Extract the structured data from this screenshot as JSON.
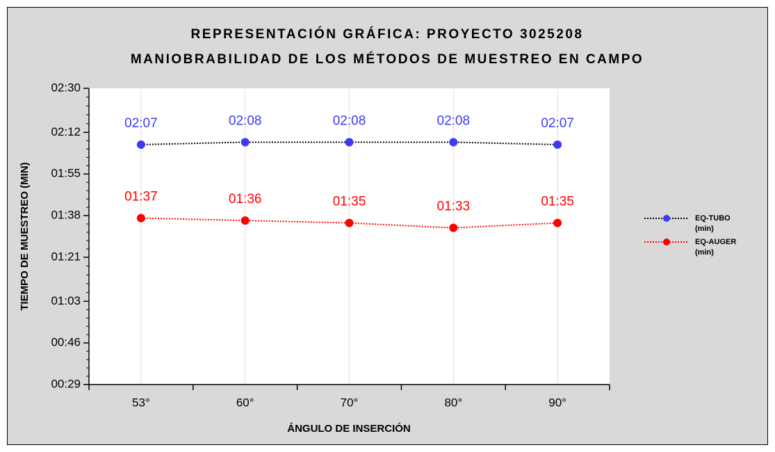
{
  "chart_data": {
    "type": "line",
    "title": [
      "REPRESENTACIÓN GRÁFICA: PROYECTO 3025208",
      "MANIOBRABILIDAD DE LOS MÉTODOS DE MUESTREO EN CAMPO"
    ],
    "x_label": "ÁNGULO DE INSERCIÓN",
    "y_label": "TIEMPO DE MUESTREO (MIN)",
    "categories": [
      "53°",
      "60°",
      "70°",
      "80°",
      "90°"
    ],
    "series": [
      {
        "name": "EQ-TUBO (min)",
        "color": "#3b3bf5",
        "line_color": "#000000",
        "values": [
          127,
          128,
          128,
          128,
          127
        ],
        "value_labels": [
          "02:07",
          "02:08",
          "02:08",
          "02:08",
          "02:07"
        ]
      },
      {
        "name": "EQ-AUGER (min)",
        "color": "#ff0000",
        "line_color": "#ff0000",
        "values": [
          97,
          96,
          95,
          93,
          95
        ],
        "value_labels": [
          "01:37",
          "01:36",
          "01:35",
          "01:33",
          "01:35"
        ]
      }
    ],
    "ylim": [
      29,
      150
    ],
    "yticks": [
      {
        "value": 29,
        "label": "00:29"
      },
      {
        "value": 46,
        "label": "00:46"
      },
      {
        "value": 63,
        "label": "01:03"
      },
      {
        "value": 81,
        "label": "01:21"
      },
      {
        "value": 98,
        "label": "01:38"
      },
      {
        "value": 115,
        "label": "01:55"
      },
      {
        "value": 132,
        "label": "02:12"
      },
      {
        "value": 150,
        "label": "02:30"
      }
    ],
    "grid": "x",
    "legend": "right"
  }
}
